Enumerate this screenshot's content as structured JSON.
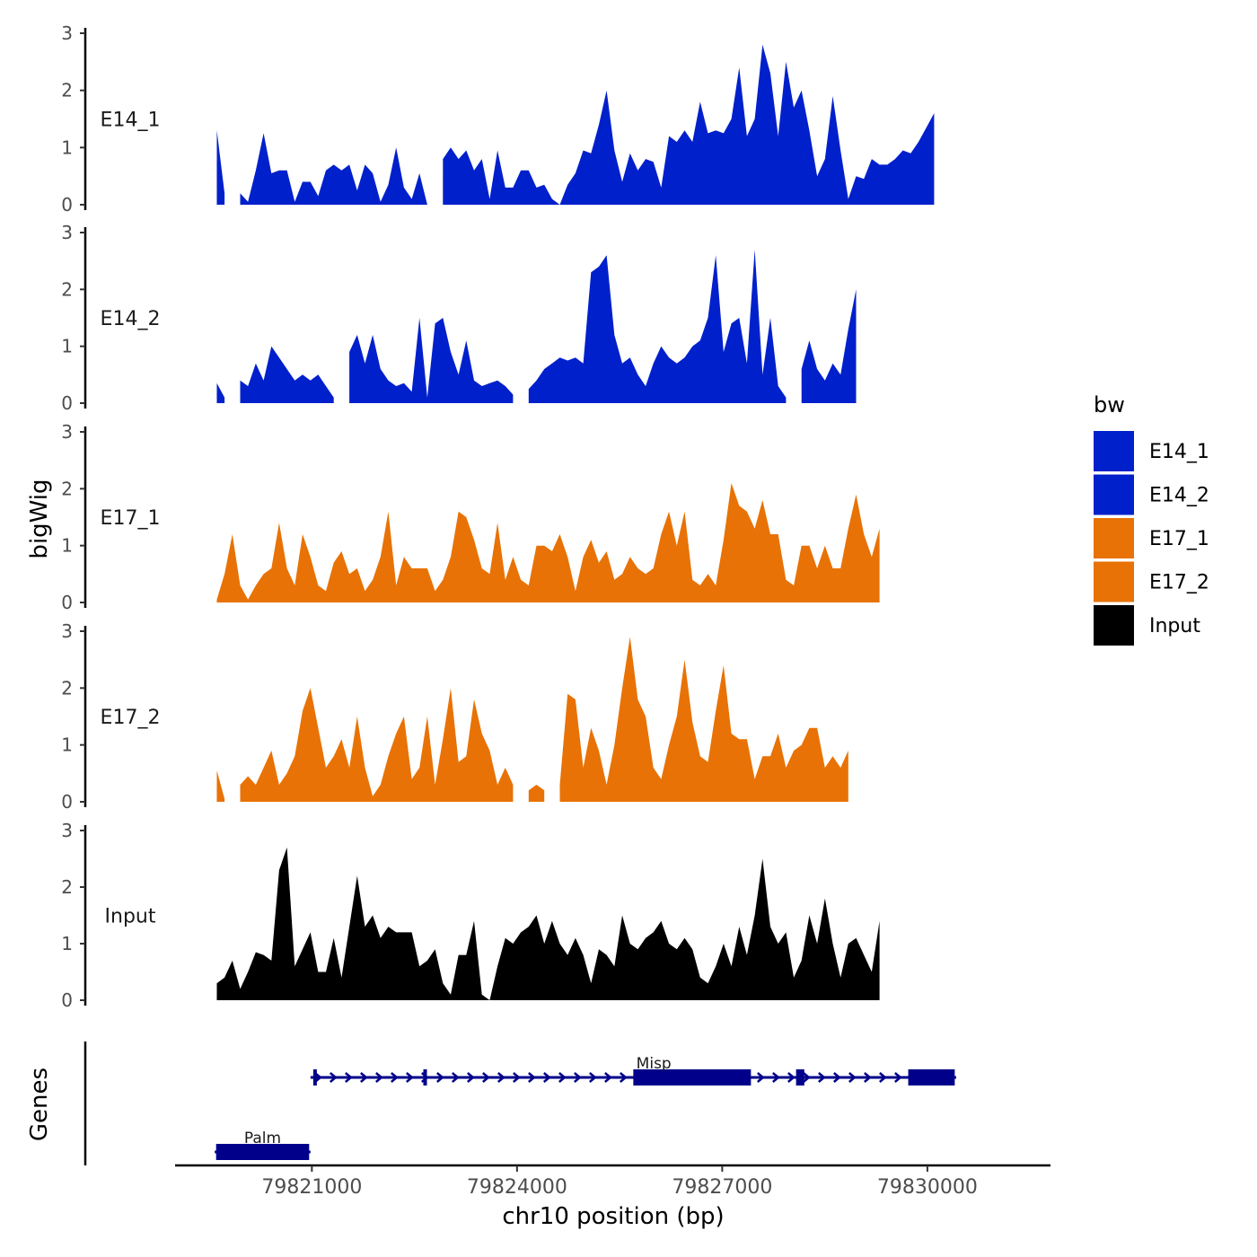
{
  "chart_data": {
    "type": "area",
    "ylabel": "bigWig",
    "genes_label": "Genes",
    "xlabel": "chr10 position (bp)",
    "xlim": [
      79819000,
      79831800
    ],
    "x_ticks": [
      79821000,
      79824000,
      79827000,
      79830000
    ],
    "x_tick_labels": [
      "79821000",
      "79824000",
      "79827000",
      "79830000"
    ],
    "ylim": [
      0,
      3
    ],
    "y_ticks": [
      0,
      1,
      2,
      3
    ],
    "y_tick_labels": [
      "0",
      "1",
      "2",
      "3"
    ],
    "x_start": 79819610,
    "x_step": 114,
    "legend": {
      "title": "bw",
      "position": "right",
      "entries": [
        {
          "label": "E14_1",
          "color": "#0020CC"
        },
        {
          "label": "E14_2",
          "color": "#0020CC"
        },
        {
          "label": "E17_1",
          "color": "#E87205"
        },
        {
          "label": "E17_2",
          "color": "#E87205"
        },
        {
          "label": "Input",
          "color": "#000000"
        }
      ]
    },
    "series": [
      {
        "name": "E14_1",
        "color": "#0020CC",
        "values": [
          1.3,
          0.2,
          null,
          0.2,
          0.05,
          0.6,
          1.25,
          0.55,
          0.6,
          0.6,
          0.05,
          0.4,
          0.4,
          0.15,
          0.6,
          0.7,
          0.6,
          0.7,
          0.25,
          0.7,
          0.55,
          0.05,
          0.35,
          1.0,
          0.3,
          0.1,
          0.55,
          0.0,
          null,
          0.8,
          1.0,
          0.8,
          0.95,
          0.6,
          0.8,
          0.1,
          0.95,
          0.3,
          0.3,
          0.6,
          0.6,
          0.3,
          0.35,
          0.1,
          0.0,
          0.35,
          0.55,
          0.95,
          0.9,
          1.4,
          2.0,
          0.95,
          0.4,
          0.9,
          0.6,
          0.8,
          0.75,
          0.3,
          1.2,
          1.1,
          1.3,
          1.1,
          1.8,
          1.25,
          1.3,
          1.25,
          1.5,
          2.4,
          1.2,
          1.5,
          2.8,
          2.3,
          1.2,
          2.5,
          1.7,
          2.0,
          1.3,
          0.5,
          0.8,
          1.9,
          0.95,
          0.1,
          0.5,
          0.45,
          0.8,
          0.7,
          0.7,
          0.8,
          0.95,
          0.9,
          1.1,
          1.35,
          1.6
        ]
      },
      {
        "name": "E14_2",
        "color": "#0020CC",
        "values": [
          0.35,
          0.1,
          null,
          0.4,
          0.3,
          0.7,
          0.4,
          1.0,
          0.8,
          0.6,
          0.4,
          0.5,
          0.4,
          0.5,
          0.3,
          0.1,
          null,
          0.9,
          1.2,
          0.7,
          1.2,
          0.6,
          0.4,
          0.3,
          0.35,
          0.2,
          1.5,
          0.1,
          1.4,
          1.5,
          0.9,
          0.5,
          1.1,
          0.4,
          0.3,
          0.35,
          0.4,
          0.3,
          0.15,
          null,
          0.25,
          0.4,
          0.6,
          0.7,
          0.8,
          0.75,
          0.8,
          0.7,
          2.3,
          2.4,
          2.6,
          1.2,
          0.7,
          0.8,
          0.5,
          0.3,
          0.7,
          1.0,
          0.8,
          0.7,
          0.8,
          1.0,
          1.1,
          1.5,
          2.6,
          0.9,
          1.4,
          1.5,
          0.7,
          2.7,
          0.5,
          1.5,
          0.3,
          0.1,
          null,
          0.6,
          1.1,
          0.6,
          0.4,
          0.7,
          0.5,
          1.3,
          2.0
        ]
      },
      {
        "name": "E17_1",
        "color": "#E87205",
        "values": [
          0.05,
          0.5,
          1.2,
          0.3,
          0.05,
          0.3,
          0.5,
          0.6,
          1.4,
          0.6,
          0.3,
          1.2,
          0.8,
          0.3,
          0.2,
          0.7,
          0.9,
          0.5,
          0.6,
          0.2,
          0.4,
          0.8,
          1.6,
          0.3,
          0.8,
          0.6,
          0.6,
          0.6,
          0.2,
          0.4,
          0.8,
          1.6,
          1.5,
          1.1,
          0.6,
          0.5,
          1.4,
          0.4,
          0.8,
          0.4,
          0.3,
          1.0,
          1.0,
          0.9,
          1.2,
          0.8,
          0.2,
          0.8,
          1.1,
          0.7,
          0.9,
          0.4,
          0.5,
          0.8,
          0.6,
          0.5,
          0.6,
          1.2,
          1.6,
          1.0,
          1.6,
          0.4,
          0.3,
          0.5,
          0.3,
          1.1,
          2.1,
          1.7,
          1.6,
          1.3,
          1.8,
          1.2,
          1.2,
          0.4,
          0.3,
          1.0,
          1.0,
          0.6,
          1.0,
          0.6,
          0.6,
          1.3,
          1.9,
          1.2,
          0.8,
          1.3
        ]
      },
      {
        "name": "E17_2",
        "color": "#E87205",
        "values": [
          0.55,
          0.05,
          null,
          0.3,
          0.45,
          0.3,
          0.6,
          0.9,
          0.3,
          0.5,
          0.8,
          1.6,
          2.0,
          1.3,
          0.6,
          0.8,
          1.1,
          0.6,
          1.5,
          0.6,
          0.1,
          0.3,
          0.8,
          1.2,
          1.5,
          0.4,
          0.6,
          1.5,
          0.3,
          1.1,
          2.0,
          0.7,
          0.8,
          1.8,
          1.2,
          0.9,
          0.3,
          0.6,
          0.3,
          null,
          0.2,
          0.3,
          0.2,
          null,
          0.3,
          1.9,
          1.8,
          0.6,
          1.3,
          0.9,
          0.3,
          1.0,
          2.0,
          2.9,
          1.8,
          1.5,
          0.6,
          0.4,
          1.0,
          1.5,
          2.5,
          1.4,
          0.8,
          0.7,
          1.6,
          2.4,
          1.2,
          1.1,
          1.1,
          0.4,
          0.8,
          0.8,
          1.2,
          0.6,
          0.9,
          1.0,
          1.3,
          1.3,
          0.6,
          0.8,
          0.6,
          0.9
        ]
      },
      {
        "name": "Input",
        "color": "#000000",
        "values": [
          0.3,
          0.4,
          0.7,
          0.2,
          0.5,
          0.85,
          0.8,
          0.7,
          2.3,
          2.7,
          0.6,
          0.9,
          1.2,
          0.5,
          0.5,
          1.1,
          0.4,
          1.3,
          2.2,
          1.3,
          1.5,
          1.1,
          1.3,
          1.2,
          1.2,
          1.2,
          0.6,
          0.7,
          0.9,
          0.3,
          0.1,
          0.8,
          0.8,
          1.4,
          0.1,
          0.0,
          0.6,
          1.1,
          1.0,
          1.2,
          1.3,
          1.5,
          1.0,
          1.4,
          1.0,
          0.8,
          1.1,
          0.8,
          0.3,
          0.9,
          0.8,
          0.6,
          1.5,
          1.0,
          0.9,
          1.1,
          1.2,
          1.4,
          1.0,
          0.9,
          1.1,
          0.9,
          0.4,
          0.3,
          0.6,
          1.0,
          0.6,
          1.3,
          0.8,
          1.5,
          2.5,
          1.3,
          1.0,
          1.2,
          0.4,
          0.7,
          1.5,
          1.0,
          1.8,
          1.0,
          0.4,
          1.0,
          1.1,
          0.8,
          0.5,
          1.4
        ]
      }
    ],
    "genes": [
      {
        "name": "Palm",
        "strand": "+",
        "start": 79819580,
        "end": 79820980,
        "exons": [
          [
            79819600,
            79820960
          ]
        ]
      },
      {
        "name": "Misp",
        "strand": "+",
        "start": 79820980,
        "end": 79830420,
        "exons": [
          [
            79821020,
            79821070
          ],
          [
            79822630,
            79822670
          ],
          [
            79825700,
            79827420
          ],
          [
            79828080,
            79828200
          ],
          [
            79829720,
            79830400
          ]
        ]
      }
    ]
  }
}
